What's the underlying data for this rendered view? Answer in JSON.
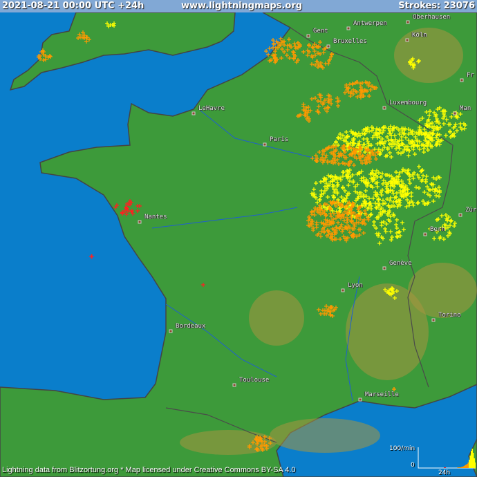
{
  "header": {
    "datetime": "2021-08-21 00:00 UTC +24h",
    "site": "www.lightningmaps.org",
    "strokes": "Strokes: 23076"
  },
  "cities": [
    {
      "name": "Oberhausen"
    },
    {
      "name": "Antwerpen"
    },
    {
      "name": "Gent"
    },
    {
      "name": "Bruxelles"
    },
    {
      "name": "Köln"
    },
    {
      "name": "Fr"
    },
    {
      "name": "Luxembourg"
    },
    {
      "name": "Man"
    },
    {
      "name": "LeHavre"
    },
    {
      "name": "Paris"
    },
    {
      "name": "Nantes"
    },
    {
      "name": "Bern"
    },
    {
      "name": "Zür"
    },
    {
      "name": "Genève"
    },
    {
      "name": "Lyon"
    },
    {
      "name": "Torino"
    },
    {
      "name": "Bordeaux"
    },
    {
      "name": "Toulouse"
    },
    {
      "name": "Marseille"
    }
  ],
  "histogram": {
    "max_label": "100/min",
    "zero_label": "0",
    "time_label": "24h"
  },
  "credit": "Lightning data from Blitzortung.org  *  Map licensed under Creative Commons BY-SA 4.0",
  "colors": {
    "sea": "#0a7ecb",
    "land": "#3d9a3a",
    "recent_strike": "#ff2020",
    "older_strike": "#ff9900",
    "oldest_strike": "#ffff00"
  }
}
